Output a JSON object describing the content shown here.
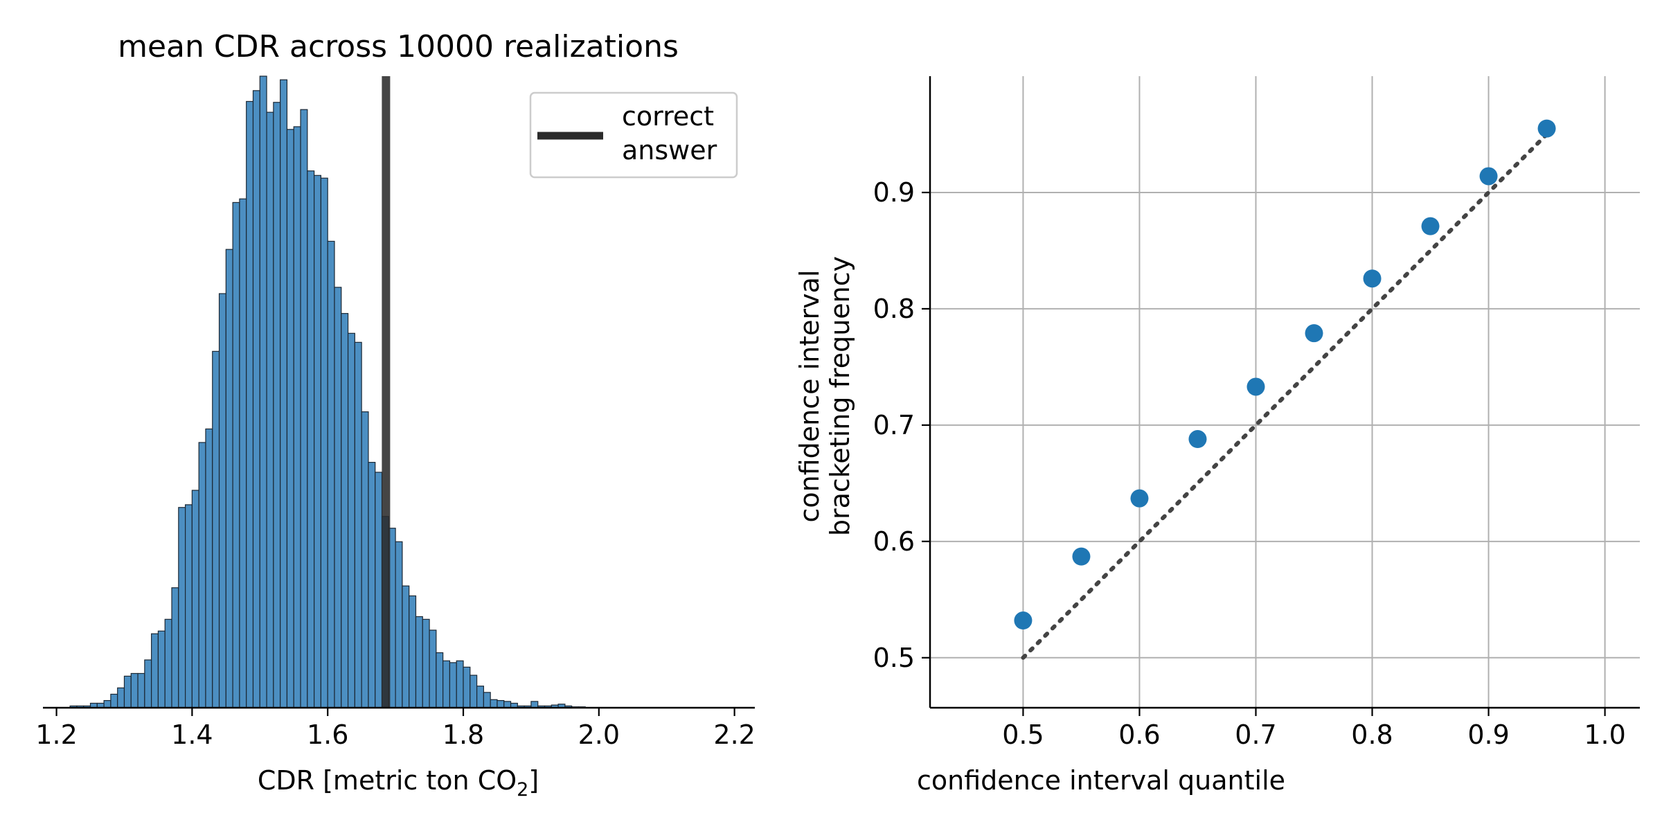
{
  "chart_data": [
    {
      "type": "bar",
      "title": "mean CDR across 10000 realizations",
      "xlabel_main": "CDR [metric ton CO",
      "xlabel_sub": "2",
      "xlabel_end": "]",
      "ylabel": "",
      "xlim": [
        1.18,
        2.23
      ],
      "ylim": [
        0,
        0.07
      ],
      "xticks": [
        1.2,
        1.4,
        1.6,
        1.8,
        2.0,
        2.2
      ],
      "xtick_labels": [
        "1.2",
        "1.4",
        "1.6",
        "1.8",
        "2.0",
        "2.2"
      ],
      "bin_start": 1.22,
      "bin_width": 0.01,
      "bin_fractions": [
        0.0002,
        0.0002,
        0.0002,
        0.0005,
        0.0005,
        0.0008,
        0.0015,
        0.0022,
        0.0035,
        0.0038,
        0.0038,
        0.0053,
        0.0082,
        0.0085,
        0.0098,
        0.0133,
        0.0222,
        0.0225,
        0.0241,
        0.0294,
        0.0309,
        0.0395,
        0.0459,
        0.0508,
        0.056,
        0.0564,
        0.0672,
        0.0684,
        0.07,
        0.066,
        0.0671,
        0.0696,
        0.0641,
        0.0644,
        0.0663,
        0.0595,
        0.059,
        0.0587,
        0.0517,
        0.0466,
        0.0437,
        0.0415,
        0.0405,
        0.0328,
        0.0272,
        0.0261,
        0.0212,
        0.0199,
        0.0184,
        0.0135,
        0.0124,
        0.0101,
        0.0098,
        0.0086,
        0.0061,
        0.0052,
        0.005,
        0.0052,
        0.0045,
        0.0036,
        0.0024,
        0.0017,
        0.0009,
        0.0008,
        0.0007,
        0.0005,
        0.0002,
        0.0002,
        0.0007,
        0.0002,
        0.0002,
        0.0003,
        0.0004,
        0.0002,
        0.0001,
        0.0001
      ],
      "correct_answer_x": 1.686,
      "legend": {
        "label_line1": "correct",
        "label_line2": "answer",
        "position": "top-right"
      },
      "colors": {
        "bars": "#4c8fc2",
        "bar_edge": "#1b2733",
        "answer_line": "#2b2b2b"
      },
      "spines": "bottom only"
    },
    {
      "type": "scatter",
      "xlabel": "confidence interval quantile",
      "ylabel_line1": "confidence interval",
      "ylabel_line2": "bracketing frequency",
      "xlim": [
        0.42,
        1.03
      ],
      "ylim": [
        0.457,
        1.0
      ],
      "xticks": [
        0.5,
        0.6,
        0.7,
        0.8,
        0.9,
        1.0
      ],
      "xtick_labels": [
        "0.5",
        "0.6",
        "0.7",
        "0.8",
        "0.9",
        "1.0"
      ],
      "yticks": [
        0.5,
        0.6,
        0.7,
        0.8,
        0.9
      ],
      "ytick_labels": [
        "0.5",
        "0.6",
        "0.7",
        "0.8",
        "0.9"
      ],
      "x": [
        0.5,
        0.55,
        0.6,
        0.65,
        0.7,
        0.75,
        0.8,
        0.85,
        0.9,
        0.95
      ],
      "y": [
        0.532,
        0.587,
        0.637,
        0.688,
        0.733,
        0.779,
        0.826,
        0.871,
        0.914,
        0.955
      ],
      "reference_line": {
        "x": [
          0.5,
          0.95
        ],
        "y": [
          0.5,
          0.95
        ],
        "style": "dotted"
      },
      "grid": true,
      "colors": {
        "points": "#1f77b4",
        "reference_line": "#444444",
        "grid": "#b0b0b0"
      }
    }
  ]
}
